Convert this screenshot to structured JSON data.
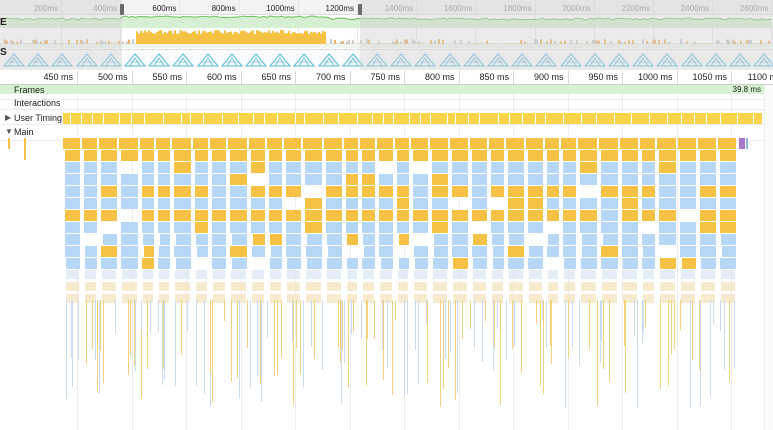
{
  "overview": {
    "ticks": [
      "200ms",
      "400ms",
      "600ms",
      "800ms",
      "1000ms",
      "1200ms",
      "1400ms",
      "1600ms",
      "1800ms",
      "2000ms",
      "2200ms",
      "2400ms",
      "2600ms"
    ],
    "side_glyphs": [
      "E",
      "S"
    ]
  },
  "ruler": {
    "ticks": [
      "450 ms",
      "500 ms",
      "550 ms",
      "600 ms",
      "650 ms",
      "700 ms",
      "750 ms",
      "800 ms",
      "850 ms",
      "900 ms",
      "950 ms",
      "1000 ms",
      "1050 ms",
      "1100 ms"
    ]
  },
  "tracks": {
    "frames_label": "Frames",
    "frames_value": "39.8 ms",
    "interactions_label": "Interactions",
    "user_timing_label": "User Timing",
    "main_label": "Main"
  },
  "colors": {
    "scripting": "#f6c243",
    "layout": "#b7d7f7",
    "frames": "#d8f0d3",
    "user_timing": "#f9d44a",
    "screenshot_icon": "#5bb9d4",
    "purple_task": "#a679cf"
  },
  "icons": {
    "collapsed": "triangle-right-icon",
    "expanded": "triangle-down-icon"
  }
}
